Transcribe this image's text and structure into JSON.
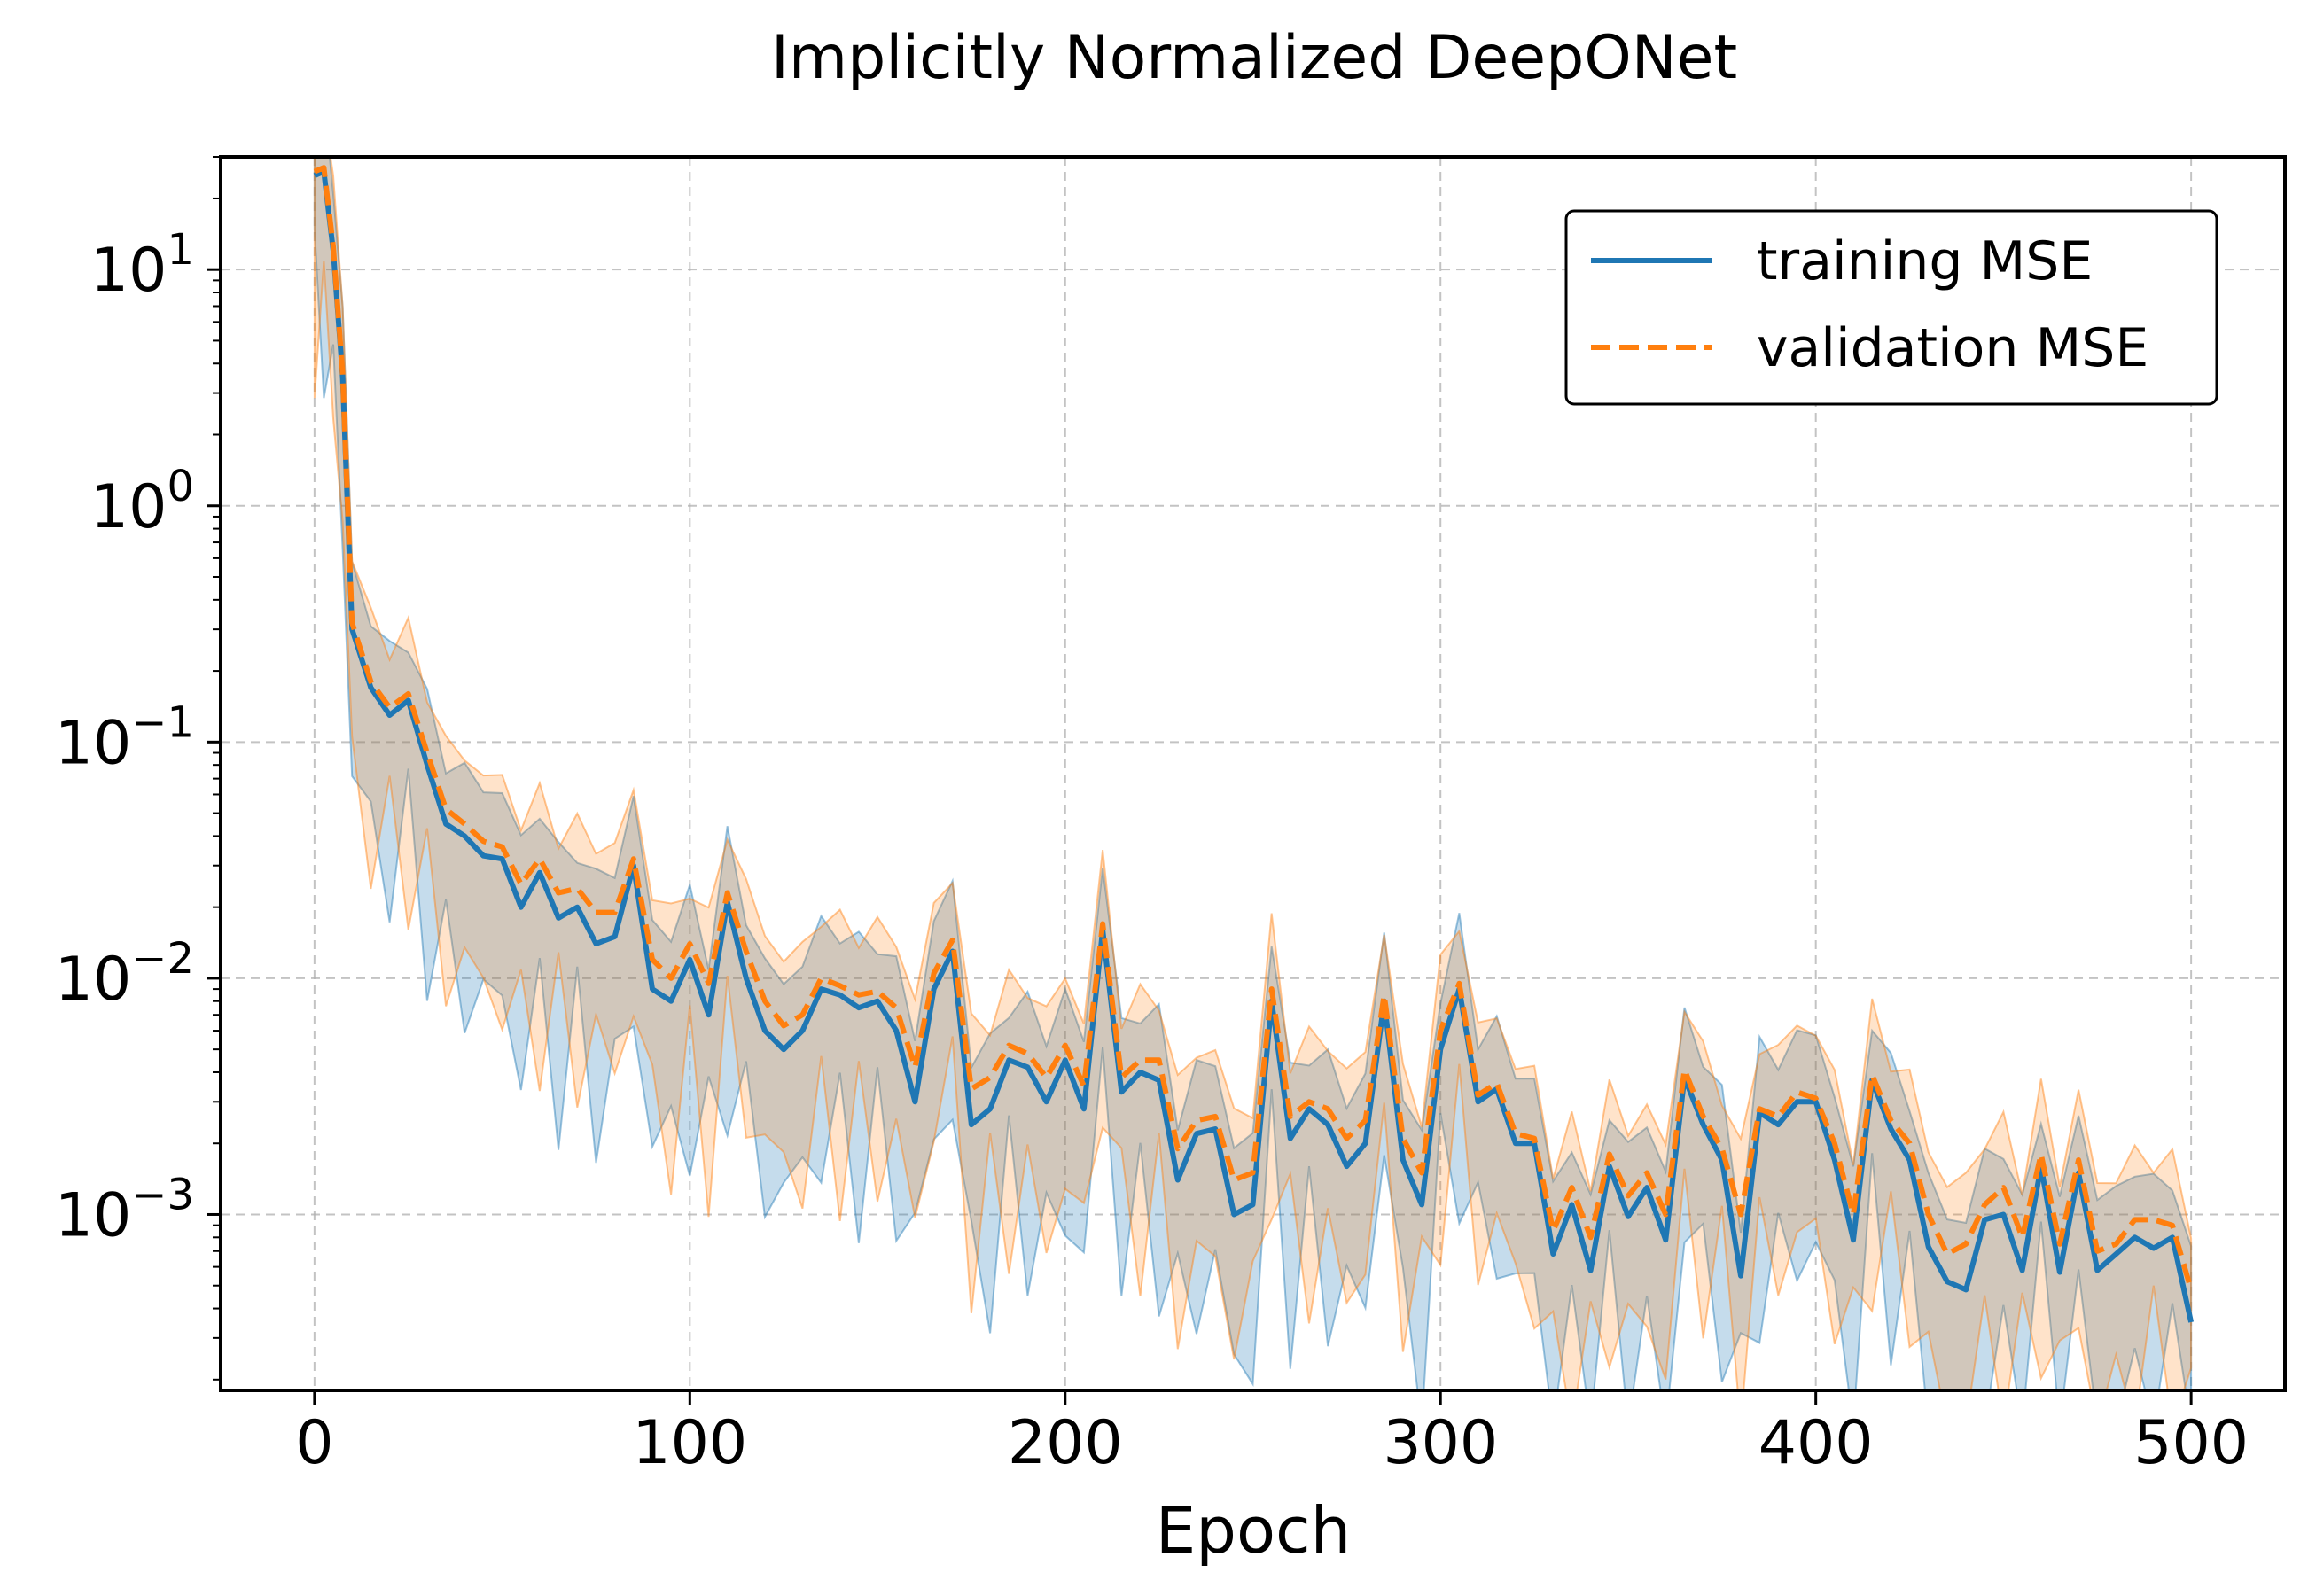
{
  "chart_data": {
    "type": "line",
    "title": "Implicitly Normalized DeepONet",
    "xlabel": "Epoch",
    "ylabel": "",
    "xlim": [
      -25,
      525
    ],
    "ylim": [
      0.00018,
      30
    ],
    "yscale": "log",
    "grid": true,
    "legend_position": "top-right",
    "x_ticks": [
      0,
      100,
      200,
      300,
      400,
      500
    ],
    "x_tick_labels": [
      "0",
      "100",
      "200",
      "300",
      "400",
      "500"
    ],
    "y_ticks": [
      10,
      1,
      0.1,
      0.01,
      0.001
    ],
    "y_tick_labels": [
      {
        "base": "10",
        "exp": "1"
      },
      {
        "base": "10",
        "exp": "0"
      },
      {
        "base": "10",
        "exp": "−1"
      },
      {
        "base": "10",
        "exp": "−2"
      },
      {
        "base": "10",
        "exp": "−3"
      }
    ],
    "x": [
      0,
      2.5,
      5,
      7.5,
      10,
      15,
      20,
      25,
      30,
      35,
      40,
      45,
      50,
      55,
      60,
      65,
      70,
      75,
      80,
      85,
      90,
      95,
      100,
      105,
      110,
      115,
      120,
      125,
      130,
      135,
      140,
      145,
      150,
      155,
      160,
      165,
      170,
      175,
      180,
      185,
      190,
      195,
      200,
      205,
      210,
      215,
      220,
      225,
      230,
      235,
      240,
      245,
      250,
      255,
      260,
      265,
      270,
      275,
      280,
      285,
      290,
      295,
      300,
      305,
      310,
      315,
      320,
      325,
      330,
      335,
      340,
      345,
      350,
      355,
      360,
      365,
      370,
      375,
      380,
      385,
      390,
      395,
      400,
      405,
      410,
      415,
      420,
      425,
      430,
      435,
      440,
      445,
      450,
      455,
      460,
      465,
      470,
      475,
      480,
      485,
      490,
      495,
      500
    ],
    "series": [
      {
        "name": "training MSE",
        "color": "#1f77b4",
        "style": "solid",
        "values": [
          25,
          26,
          12,
          3.5,
          0.3,
          0.17,
          0.13,
          0.15,
          0.08,
          0.045,
          0.04,
          0.033,
          0.032,
          0.02,
          0.028,
          0.018,
          0.02,
          0.014,
          0.015,
          0.03,
          0.009,
          0.008,
          0.012,
          0.007,
          0.021,
          0.01,
          0.006,
          0.005,
          0.006,
          0.009,
          0.0085,
          0.0075,
          0.008,
          0.006,
          0.003,
          0.009,
          0.013,
          0.0024,
          0.0028,
          0.0045,
          0.0042,
          0.003,
          0.0045,
          0.0028,
          0.016,
          0.0033,
          0.004,
          0.0037,
          0.0014,
          0.0022,
          0.0023,
          0.001,
          0.0011,
          0.008,
          0.0021,
          0.0028,
          0.0024,
          0.0016,
          0.002,
          0.008,
          0.0017,
          0.0011,
          0.005,
          0.009,
          0.003,
          0.0034,
          0.002,
          0.002,
          0.00068,
          0.0011,
          0.00058,
          0.0016,
          0.00098,
          0.0013,
          0.00078,
          0.0038,
          0.0024,
          0.0017,
          0.00055,
          0.0027,
          0.0024,
          0.003,
          0.003,
          0.0017,
          0.00078,
          0.0037,
          0.0023,
          0.0017,
          0.00073,
          0.00052,
          0.00048,
          0.00095,
          0.001,
          0.00058,
          0.0016,
          0.00057,
          0.0015,
          0.00058,
          0.00068,
          0.0008,
          0.00072,
          0.0008,
          0.00035
        ]
      },
      {
        "name": "validation MSE",
        "color": "#ff7f0e",
        "style": "dashed",
        "values": [
          26,
          27,
          12.5,
          3.6,
          0.32,
          0.18,
          0.14,
          0.16,
          0.09,
          0.052,
          0.045,
          0.038,
          0.036,
          0.025,
          0.032,
          0.023,
          0.024,
          0.019,
          0.019,
          0.032,
          0.012,
          0.01,
          0.014,
          0.0095,
          0.023,
          0.013,
          0.008,
          0.0063,
          0.007,
          0.01,
          0.0093,
          0.0085,
          0.0088,
          0.0075,
          0.0042,
          0.0105,
          0.0145,
          0.0034,
          0.0038,
          0.0052,
          0.0048,
          0.0038,
          0.0052,
          0.0035,
          0.017,
          0.0038,
          0.0045,
          0.0045,
          0.0019,
          0.0025,
          0.0026,
          0.0014,
          0.0015,
          0.009,
          0.0026,
          0.003,
          0.0028,
          0.0021,
          0.0025,
          0.0085,
          0.0021,
          0.0015,
          0.006,
          0.0095,
          0.0032,
          0.0036,
          0.0022,
          0.0021,
          0.00085,
          0.0013,
          0.0008,
          0.0018,
          0.0012,
          0.0015,
          0.001,
          0.0041,
          0.0026,
          0.0019,
          0.001,
          0.0028,
          0.0026,
          0.0033,
          0.0031,
          0.002,
          0.001,
          0.0039,
          0.0025,
          0.002,
          0.001,
          0.00068,
          0.00075,
          0.0011,
          0.0013,
          0.0008,
          0.0018,
          0.00075,
          0.0017,
          0.0007,
          0.00075,
          0.00095,
          0.00095,
          0.0009,
          0.00048
        ]
      }
    ]
  }
}
